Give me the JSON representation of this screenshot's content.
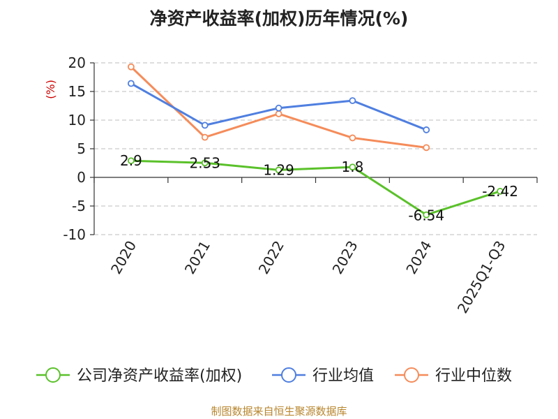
{
  "chart_data": {
    "type": "line",
    "title": "净资产收益率(加权)历年情况(%)",
    "ylabel": "(%)",
    "xlabel": "",
    "categories": [
      "2020",
      "2021",
      "2022",
      "2023",
      "2024",
      "2025Q1-Q3"
    ],
    "ylim": [
      -10,
      20
    ],
    "yticks": [
      20,
      15,
      10,
      5,
      0,
      -5,
      -10
    ],
    "grid": true,
    "legend_position": "bottom",
    "series": [
      {
        "name": "公司净资产收益率(加权)",
        "color": "#5ac12a",
        "values": [
          2.9,
          2.53,
          1.29,
          1.8,
          -6.54,
          -2.42
        ],
        "labels": [
          "2.9",
          "2.53",
          "1.29",
          "1.8",
          "-6.54",
          "-2.42"
        ]
      },
      {
        "name": "行业均值",
        "color": "#4f7fe0",
        "values": [
          16.4,
          9.1,
          12.1,
          13.4,
          8.3,
          null
        ]
      },
      {
        "name": "行业中位数",
        "color": "#f58c5a",
        "values": [
          19.3,
          7.0,
          11.1,
          6.9,
          5.2,
          null
        ]
      }
    ],
    "source": "制图数据来自恒生聚源数据库"
  }
}
